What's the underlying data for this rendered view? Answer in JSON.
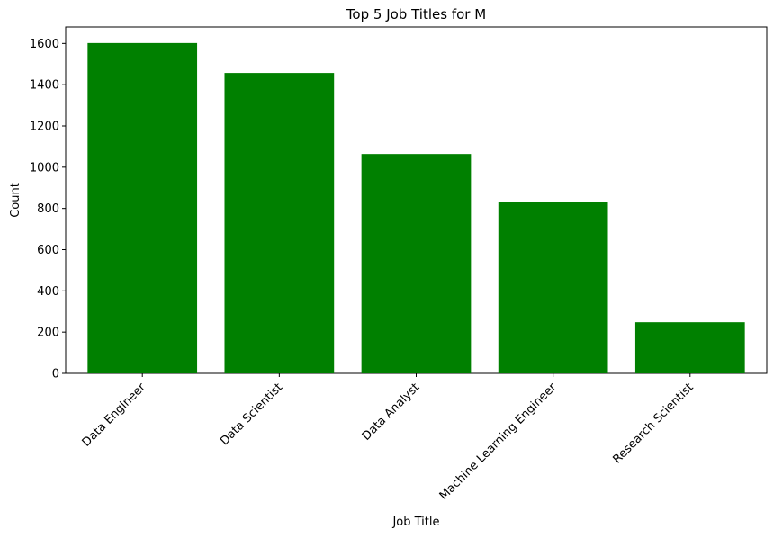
{
  "chart_data": {
    "type": "bar",
    "title": "Top 5 Job Titles for M",
    "xlabel": "Job Title",
    "ylabel": "Count",
    "categories": [
      "Data Engineer",
      "Data Scientist",
      "Data Analyst",
      "Machine Learning Engineer",
      "Research Scientist"
    ],
    "values": [
      1602,
      1457,
      1064,
      832,
      248
    ],
    "ylim": [
      0,
      1680
    ],
    "yticks": [
      0,
      200,
      400,
      600,
      800,
      1000,
      1200,
      1400,
      1600
    ],
    "bar_color": "#008000",
    "grid": false
  }
}
